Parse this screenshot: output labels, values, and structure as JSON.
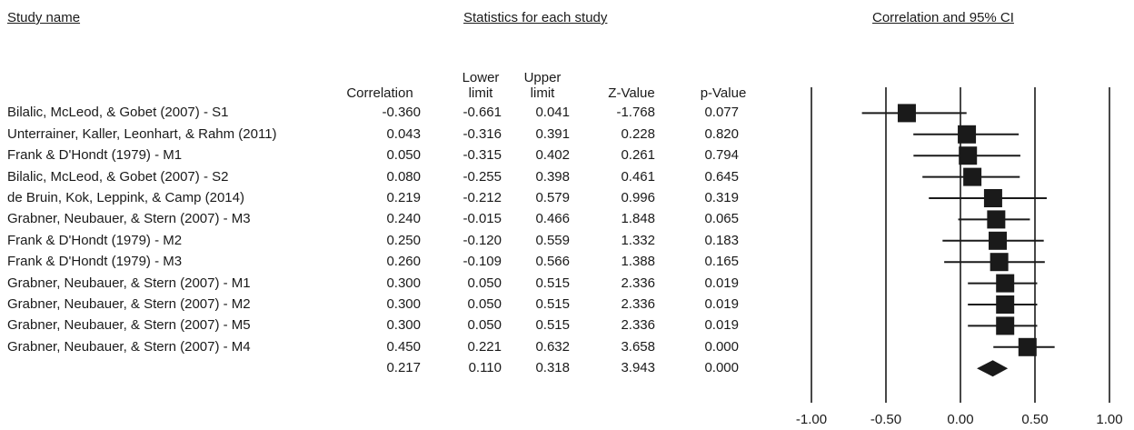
{
  "headers": {
    "study_name": "Study name",
    "statistics": "Statistics for each study",
    "correlation_ci": "Correlation and 95% CI"
  },
  "columns": {
    "correlation": "Correlation",
    "lower": [
      "Lower",
      "limit"
    ],
    "upper": [
      "Upper",
      "limit"
    ],
    "zvalue": "Z-Value",
    "pvalue": "p-Value"
  },
  "chart_data": {
    "type": "table",
    "plot": "forest",
    "columns": [
      "Study name",
      "Correlation",
      "Lower limit",
      "Upper limit",
      "Z-Value",
      "p-Value"
    ],
    "rows": [
      {
        "study": "Bilalic, McLeod, & Gobet (2007) - S1",
        "correlation": "-0.360",
        "lower": "-0.661",
        "upper": "0.041",
        "z": "-1.768",
        "p": "0.077"
      },
      {
        "study": "Unterrainer, Kaller, Leonhart, & Rahm (2011)",
        "correlation": "0.043",
        "lower": "-0.316",
        "upper": "0.391",
        "z": "0.228",
        "p": "0.820"
      },
      {
        "study": "Frank & D'Hondt (1979) - M1",
        "correlation": "0.050",
        "lower": "-0.315",
        "upper": "0.402",
        "z": "0.261",
        "p": "0.794"
      },
      {
        "study": "Bilalic, McLeod, & Gobet (2007) - S2",
        "correlation": "0.080",
        "lower": "-0.255",
        "upper": "0.398",
        "z": "0.461",
        "p": "0.645"
      },
      {
        "study": "de Bruin, Kok, Leppink, & Camp (2014)",
        "correlation": "0.219",
        "lower": "-0.212",
        "upper": "0.579",
        "z": "0.996",
        "p": "0.319"
      },
      {
        "study": "Grabner, Neubauer, & Stern (2007) - M3",
        "correlation": "0.240",
        "lower": "-0.015",
        "upper": "0.466",
        "z": "1.848",
        "p": "0.065"
      },
      {
        "study": "Frank & D'Hondt (1979) - M2",
        "correlation": "0.250",
        "lower": "-0.120",
        "upper": "0.559",
        "z": "1.332",
        "p": "0.183"
      },
      {
        "study": "Frank & D'Hondt (1979) - M3",
        "correlation": "0.260",
        "lower": "-0.109",
        "upper": "0.566",
        "z": "1.388",
        "p": "0.165"
      },
      {
        "study": "Grabner, Neubauer, & Stern (2007) - M1",
        "correlation": "0.300",
        "lower": "0.050",
        "upper": "0.515",
        "z": "2.336",
        "p": "0.019"
      },
      {
        "study": "Grabner, Neubauer, & Stern (2007) - M2",
        "correlation": "0.300",
        "lower": "0.050",
        "upper": "0.515",
        "z": "2.336",
        "p": "0.019"
      },
      {
        "study": "Grabner, Neubauer, & Stern (2007) - M5",
        "correlation": "0.300",
        "lower": "0.050",
        "upper": "0.515",
        "z": "2.336",
        "p": "0.019"
      },
      {
        "study": "Grabner, Neubauer, & Stern (2007) - M4",
        "correlation": "0.450",
        "lower": "0.221",
        "upper": "0.632",
        "z": "3.658",
        "p": "0.000"
      }
    ],
    "summary": {
      "correlation": "0.217",
      "lower": "0.110",
      "upper": "0.318",
      "z": "3.943",
      "p": "0.000"
    },
    "xlim": [
      -1,
      1
    ],
    "xticks": [
      -1,
      -0.5,
      0,
      0.5,
      1
    ],
    "xtick_labels": [
      "-1.00",
      "-0.50",
      "0.00",
      "0.50",
      "1.00"
    ],
    "reference_lines": [
      -1,
      -0.5,
      0,
      0.5,
      1
    ],
    "grid": false,
    "colors": {
      "marker": "#1a1a1a",
      "line": "#1a1a1a"
    }
  }
}
